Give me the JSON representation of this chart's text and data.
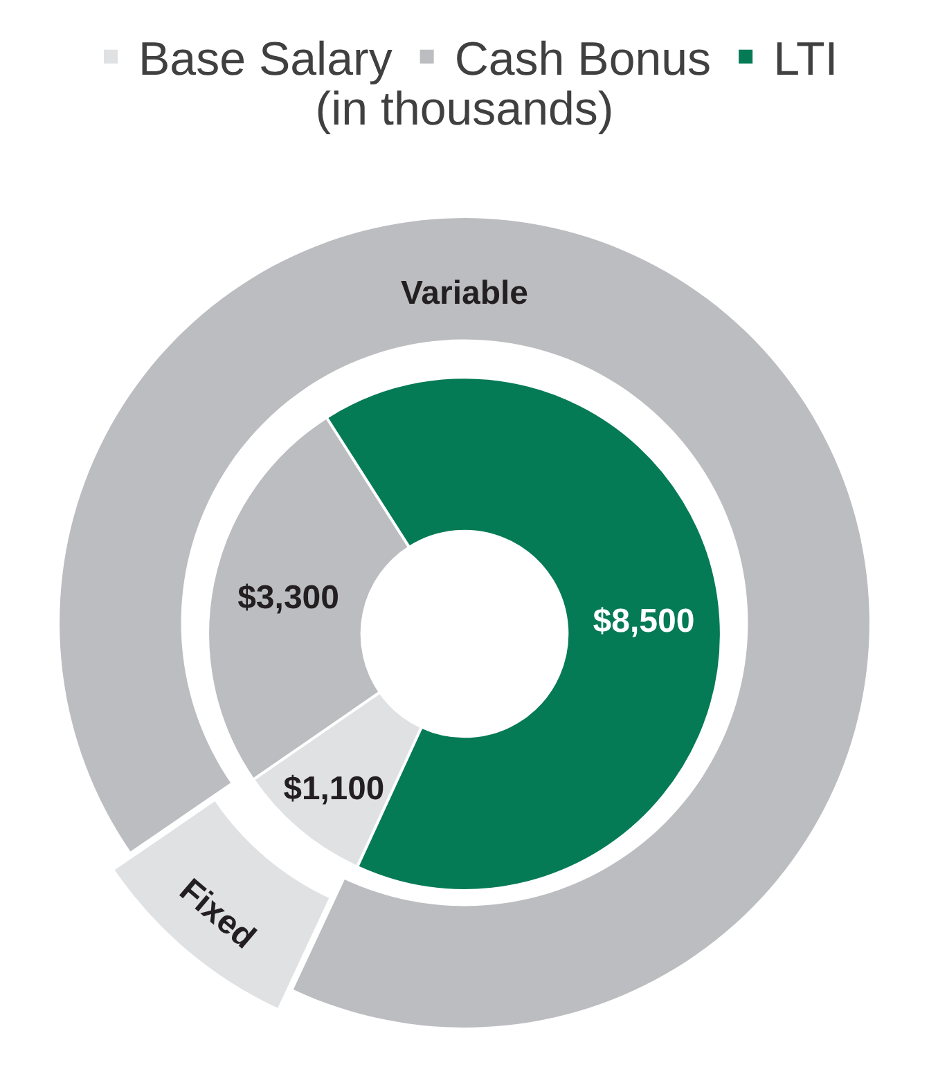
{
  "chart_data": [
    {
      "type": "donut",
      "title": "(in thousands)",
      "categories": [
        "Base Salary",
        "Cash Bonus",
        "LTI"
      ],
      "values": [
        1100,
        3300,
        8500
      ],
      "colors": [
        "#e0e1e3",
        "#bcbdc0",
        "#047a55"
      ],
      "value_labels": [
        "$1,100",
        "$3,300",
        "$8,500"
      ],
      "legend": "top"
    },
    {
      "type": "donut",
      "categories": [
        "Fixed",
        "Variable"
      ],
      "values": [
        8.5,
        91.5
      ],
      "colors": [
        "#e0e1e3",
        "#bcbdc0"
      ]
    }
  ]
}
